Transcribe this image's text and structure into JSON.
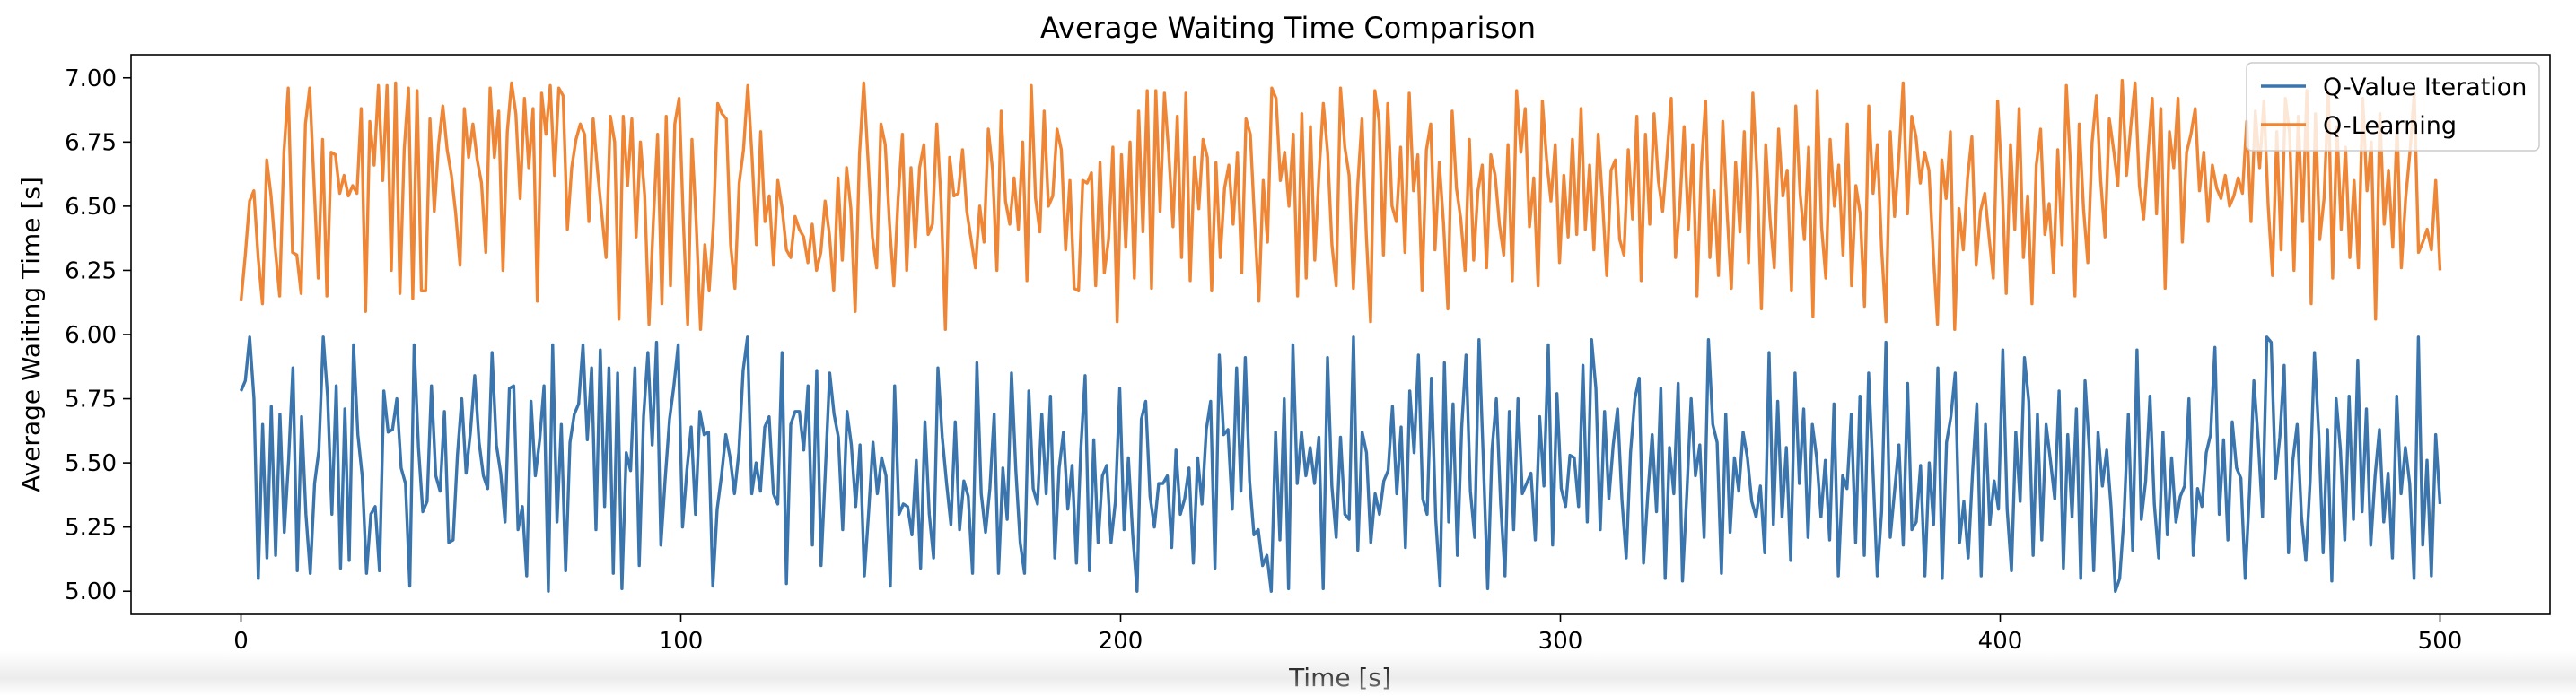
{
  "chart_data": {
    "type": "line",
    "title": "Average Waiting Time Comparison",
    "xlabel": "Time [s]",
    "ylabel": "Average Waiting Time [s]",
    "xlim": [
      -25,
      525
    ],
    "ylim": [
      4.91,
      7.09
    ],
    "xticks": [
      0,
      100,
      200,
      300,
      400,
      500
    ],
    "yticks": [
      5.0,
      5.25,
      5.5,
      5.75,
      6.0,
      6.25,
      6.5,
      6.75,
      7.0
    ],
    "xtick_labels": [
      "0",
      "100",
      "200",
      "300",
      "400",
      "500"
    ],
    "ytick_labels": [
      "5.00",
      "5.25",
      "5.50",
      "5.75",
      "6.00",
      "6.25",
      "6.50",
      "6.75",
      "7.00"
    ],
    "grid": false,
    "legend_position": "top-right",
    "series": [
      {
        "name": "Q-Value Iteration",
        "color": "#3a75ad",
        "range": [
          5.0,
          6.0
        ],
        "x_start": 0,
        "x_end": 500,
        "values": [
          5.78,
          5.82,
          5.99,
          5.75,
          5.05,
          5.65,
          5.13,
          5.72,
          5.14,
          5.69,
          5.23,
          5.51,
          5.87,
          5.08,
          5.68,
          5.3,
          5.07,
          5.42,
          5.55,
          5.99,
          5.76,
          5.3,
          5.8,
          5.09,
          5.71,
          5.12,
          5.96,
          5.61,
          5.45,
          5.07,
          5.3,
          5.33,
          5.08,
          5.78,
          5.62,
          5.63,
          5.75,
          5.48,
          5.42,
          5.02,
          5.96,
          5.56,
          5.31,
          5.35,
          5.8,
          5.45,
          5.39,
          5.7,
          5.19,
          5.2,
          5.53,
          5.75,
          5.46,
          5.62,
          5.84,
          5.58,
          5.45,
          5.4,
          5.93,
          5.57,
          5.46,
          5.27,
          5.79,
          5.8,
          5.24,
          5.33,
          5.06,
          5.74,
          5.45,
          5.59,
          5.8,
          5.0,
          5.96,
          5.27,
          5.65,
          5.08,
          5.58,
          5.69,
          5.73,
          5.96,
          5.59,
          5.87,
          5.24,
          5.94,
          5.33,
          5.87,
          5.07,
          5.85,
          5.01,
          5.54,
          5.47,
          5.87,
          5.1,
          5.68,
          5.93,
          5.57,
          5.97,
          5.18,
          5.44,
          5.67,
          5.8,
          5.96,
          5.25,
          5.47,
          5.64,
          5.3,
          5.7,
          5.61,
          5.62,
          5.02,
          5.32,
          5.45,
          5.61,
          5.52,
          5.38,
          5.54,
          5.86,
          5.99,
          5.38,
          5.5,
          5.39,
          5.64,
          5.68,
          5.38,
          5.34,
          5.93,
          5.03,
          5.65,
          5.7,
          5.7,
          5.55,
          5.8,
          5.18,
          5.86,
          5.1,
          5.47,
          5.85,
          5.69,
          5.6,
          5.24,
          5.7,
          5.57,
          5.33,
          5.57,
          5.06,
          5.31,
          5.58,
          5.38,
          5.52,
          5.45,
          5.02,
          5.8,
          5.3,
          5.34,
          5.33,
          5.22,
          5.51,
          5.09,
          5.66,
          5.3,
          5.13,
          5.87,
          5.6,
          5.42,
          5.26,
          5.66,
          5.24,
          5.43,
          5.37,
          5.07,
          5.89,
          5.38,
          5.23,
          5.4,
          5.69,
          5.07,
          5.48,
          5.28,
          5.85,
          5.47,
          5.19,
          5.07,
          5.78,
          5.4,
          5.34,
          5.69,
          5.38,
          5.76,
          5.13,
          5.48,
          5.62,
          5.32,
          5.49,
          5.11,
          5.55,
          5.84,
          5.08,
          5.59,
          5.19,
          5.45,
          5.49,
          5.19,
          5.35,
          5.79,
          5.24,
          5.52,
          5.22,
          5.0,
          5.67,
          5.74,
          5.37,
          5.25,
          5.42,
          5.42,
          5.45,
          5.17,
          5.55,
          5.3,
          5.36,
          5.48,
          5.11,
          5.52,
          5.34,
          5.63,
          5.74,
          5.09,
          5.92,
          5.61,
          5.63,
          5.32,
          5.87,
          5.39,
          5.91,
          5.43,
          5.22,
          5.24,
          5.1,
          5.14,
          5.0,
          5.62,
          5.2,
          5.75,
          5.01,
          5.96,
          5.42,
          5.62,
          5.45,
          5.56,
          5.42,
          5.6,
          5.01,
          5.91,
          5.41,
          5.21,
          5.6,
          5.3,
          5.28,
          5.99,
          5.16,
          5.62,
          5.54,
          5.19,
          5.38,
          5.3,
          5.43,
          5.47,
          5.72,
          5.38,
          5.64,
          5.17,
          5.78,
          5.54,
          5.92,
          5.36,
          5.3,
          5.83,
          5.28,
          5.02,
          5.89,
          5.27,
          5.73,
          5.14,
          5.64,
          5.92,
          5.39,
          5.21,
          5.98,
          5.51,
          5.01,
          5.55,
          5.75,
          5.34,
          5.06,
          5.7,
          5.24,
          5.75,
          5.38,
          5.42,
          5.46,
          5.2,
          5.68,
          5.41,
          5.96,
          5.18,
          5.77,
          5.4,
          5.33,
          5.53,
          5.52,
          5.33,
          5.88,
          5.27,
          5.98,
          5.79,
          5.24,
          5.7,
          5.36,
          5.57,
          5.71,
          5.36,
          5.13,
          5.54,
          5.75,
          5.83,
          5.11,
          5.38,
          5.61,
          5.31,
          5.79,
          5.05,
          5.56,
          5.38,
          5.81,
          5.04,
          5.38,
          5.75,
          5.45,
          5.57,
          5.21,
          5.98,
          5.65,
          5.58,
          5.07,
          5.69,
          5.23,
          5.52,
          5.39,
          5.62,
          5.52,
          5.35,
          5.29,
          5.41,
          5.15,
          5.93,
          5.26,
          5.74,
          5.29,
          5.56,
          5.12,
          5.85,
          5.42,
          5.71,
          5.21,
          5.65,
          5.52,
          5.29,
          5.51,
          5.2,
          5.73,
          5.06,
          5.45,
          5.4,
          5.69,
          5.19,
          5.76,
          5.14,
          5.85,
          5.47,
          5.06,
          5.31,
          5.97,
          5.21,
          5.39,
          5.57,
          5.18,
          5.81,
          5.24,
          5.27,
          5.49,
          5.06,
          5.5,
          5.26,
          5.87,
          5.05,
          5.58,
          5.68,
          5.85,
          5.19,
          5.35,
          5.13,
          5.46,
          5.73,
          5.06,
          5.65,
          5.26,
          5.43,
          5.32,
          5.94,
          5.32,
          5.08,
          5.62,
          5.35,
          5.91,
          5.74,
          5.14,
          5.69,
          5.2,
          5.65,
          5.51,
          5.36,
          5.78,
          5.09,
          5.61,
          5.29,
          5.71,
          5.05,
          5.82,
          5.55,
          5.08,
          5.62,
          5.41,
          5.55,
          5.33,
          5.0,
          5.05,
          5.29,
          5.69,
          5.16,
          5.94,
          5.28,
          5.43,
          5.76,
          5.34,
          5.13,
          5.62,
          5.22,
          5.52,
          5.27,
          5.37,
          5.41,
          5.75,
          5.14,
          5.4,
          5.33,
          5.54,
          5.61,
          5.95,
          5.3,
          5.59,
          5.2,
          5.66,
          5.48,
          5.44,
          5.05,
          5.39,
          5.82,
          5.59,
          5.29,
          5.99,
          5.97,
          5.44,
          5.6,
          5.88,
          5.15,
          5.51,
          5.65,
          5.29,
          5.12,
          5.43,
          5.93,
          5.61,
          5.15,
          5.63,
          5.04,
          5.75,
          5.55,
          5.2,
          5.76,
          5.28,
          5.9,
          5.31,
          5.71,
          5.18,
          5.45,
          5.63,
          5.27,
          5.46,
          5.13,
          5.76,
          5.38,
          5.56,
          5.42,
          5.05,
          5.99,
          5.18,
          5.51,
          5.06,
          5.61,
          5.34
        ]
      },
      {
        "name": "Q-Learning",
        "color": "#ef8636",
        "range": [
          6.0,
          7.0
        ],
        "x_start": 0,
        "x_end": 500,
        "values": [
          6.13,
          6.31,
          6.52,
          6.56,
          6.3,
          6.12,
          6.68,
          6.54,
          6.33,
          6.15,
          6.71,
          6.96,
          6.32,
          6.31,
          6.16,
          6.82,
          6.96,
          6.59,
          6.22,
          6.76,
          6.15,
          6.71,
          6.7,
          6.55,
          6.62,
          6.54,
          6.58,
          6.55,
          6.88,
          6.09,
          6.83,
          6.66,
          6.97,
          6.6,
          6.97,
          6.25,
          6.98,
          6.16,
          6.72,
          6.96,
          6.14,
          6.95,
          6.17,
          6.17,
          6.84,
          6.48,
          6.74,
          6.89,
          6.72,
          6.62,
          6.47,
          6.27,
          6.88,
          6.69,
          6.82,
          6.68,
          6.59,
          6.32,
          6.96,
          6.69,
          6.87,
          6.25,
          6.79,
          6.98,
          6.86,
          6.53,
          6.92,
          6.65,
          6.88,
          6.13,
          6.94,
          6.78,
          6.97,
          6.62,
          6.96,
          6.93,
          6.41,
          6.65,
          6.76,
          6.82,
          6.78,
          6.44,
          6.84,
          6.64,
          6.47,
          6.3,
          6.85,
          6.75,
          6.06,
          6.85,
          6.58,
          6.84,
          6.38,
          6.75,
          6.54,
          6.04,
          6.44,
          6.78,
          6.12,
          6.85,
          6.19,
          6.82,
          6.92,
          6.44,
          6.04,
          6.76,
          6.43,
          6.02,
          6.35,
          6.17,
          6.43,
          6.9,
          6.86,
          6.84,
          6.35,
          6.18,
          6.59,
          6.72,
          6.97,
          6.69,
          6.35,
          6.79,
          6.44,
          6.54,
          6.27,
          6.6,
          6.49,
          6.33,
          6.3,
          6.46,
          6.41,
          6.38,
          6.28,
          6.43,
          6.25,
          6.32,
          6.52,
          6.39,
          6.17,
          6.61,
          6.29,
          6.65,
          6.49,
          6.09,
          6.7,
          6.98,
          6.68,
          6.38,
          6.26,
          6.82,
          6.74,
          6.43,
          6.19,
          6.53,
          6.78,
          6.25,
          6.65,
          6.34,
          6.65,
          6.74,
          6.39,
          6.43,
          6.82,
          6.52,
          6.02,
          6.69,
          6.54,
          6.55,
          6.72,
          6.48,
          6.37,
          6.26,
          6.5,
          6.36,
          6.8,
          6.64,
          6.25,
          6.87,
          6.52,
          6.43,
          6.61,
          6.41,
          6.75,
          6.21,
          6.97,
          6.53,
          6.4,
          6.87,
          6.5,
          6.54,
          6.8,
          6.72,
          6.33,
          6.6,
          6.18,
          6.17,
          6.6,
          6.59,
          6.63,
          6.19,
          6.67,
          6.24,
          6.37,
          6.73,
          6.05,
          6.7,
          6.34,
          6.75,
          6.22,
          6.87,
          6.4,
          6.95,
          6.18,
          6.95,
          6.48,
          6.94,
          6.71,
          6.42,
          6.85,
          6.3,
          6.94,
          6.21,
          6.69,
          6.49,
          6.76,
          6.69,
          6.17,
          6.67,
          6.3,
          6.57,
          6.66,
          6.43,
          6.71,
          6.24,
          6.84,
          6.78,
          6.44,
          6.13,
          6.6,
          6.36,
          6.96,
          6.92,
          6.6,
          6.71,
          6.5,
          6.78,
          6.15,
          6.86,
          6.22,
          6.81,
          6.29,
          6.63,
          6.9,
          6.71,
          6.35,
          6.19,
          6.96,
          6.73,
          6.62,
          6.18,
          6.58,
          6.84,
          6.39,
          6.05,
          6.95,
          6.83,
          6.31,
          6.9,
          6.5,
          6.44,
          6.73,
          6.32,
          6.94,
          6.56,
          6.7,
          6.17,
          6.72,
          6.82,
          6.33,
          6.67,
          6.43,
          6.1,
          6.87,
          6.57,
          6.45,
          6.25,
          6.76,
          6.29,
          6.56,
          6.66,
          6.26,
          6.7,
          6.62,
          6.43,
          6.31,
          6.74,
          6.21,
          6.95,
          6.71,
          6.88,
          6.42,
          6.61,
          6.19,
          6.91,
          6.68,
          6.52,
          6.74,
          6.28,
          6.62,
          6.38,
          6.76,
          6.39,
          6.88,
          6.41,
          6.66,
          6.33,
          6.78,
          6.52,
          6.23,
          6.64,
          6.68,
          6.37,
          6.31,
          6.72,
          6.45,
          6.85,
          6.21,
          6.78,
          6.43,
          6.86,
          6.6,
          6.48,
          6.69,
          6.92,
          6.3,
          6.5,
          6.81,
          6.41,
          6.74,
          6.15,
          6.65,
          6.91,
          6.3,
          6.56,
          6.23,
          6.83,
          6.48,
          6.18,
          6.67,
          6.4,
          6.79,
          6.28,
          6.94,
          6.62,
          6.1,
          6.74,
          6.45,
          6.26,
          6.8,
          6.54,
          6.64,
          6.17,
          6.89,
          6.55,
          6.37,
          6.73,
          6.07,
          6.95,
          6.42,
          6.22,
          6.76,
          6.5,
          6.66,
          6.31,
          6.82,
          6.19,
          6.58,
          6.47,
          6.11,
          6.89,
          6.55,
          6.74,
          6.33,
          6.05,
          6.79,
          6.46,
          6.69,
          6.98,
          6.47,
          6.85,
          6.77,
          6.59,
          6.71,
          6.64,
          6.32,
          6.04,
          6.68,
          6.53,
          6.79,
          6.02,
          6.49,
          6.33,
          6.61,
          6.77,
          6.27,
          6.48,
          6.55,
          6.38,
          6.22,
          6.91,
          6.6,
          6.16,
          6.74,
          6.41,
          6.88,
          6.3,
          6.54,
          6.12,
          6.66,
          6.8,
          6.39,
          6.51,
          6.24,
          6.72,
          6.35,
          6.97,
          6.65,
          6.15,
          6.82,
          6.49,
          6.28,
          6.75,
          6.93,
          6.6,
          6.38,
          6.84,
          6.72,
          6.58,
          6.99,
          6.62,
          6.81,
          6.98,
          6.58,
          6.45,
          6.7,
          6.92,
          6.47,
          6.88,
          6.18,
          6.79,
          6.65,
          6.92,
          6.36,
          6.71,
          6.78,
          6.88,
          6.56,
          6.71,
          6.44,
          6.66,
          6.57,
          6.53,
          6.62,
          6.5,
          6.54,
          6.61,
          6.55,
          6.83,
          6.44,
          6.87,
          6.65,
          6.91,
          6.5,
          6.23,
          6.79,
          6.33,
          6.92,
          6.78,
          6.25,
          6.85,
          6.44,
          6.95,
          6.12,
          6.86,
          6.37,
          6.53,
          6.95,
          6.22,
          6.81,
          6.41,
          6.73,
          6.3,
          6.6,
          6.26,
          6.92,
          6.56,
          6.75,
          6.06,
          6.86,
          6.43,
          6.64,
          6.34,
          6.82,
          6.26,
          6.53,
          6.71,
          6.94,
          6.32,
          6.36,
          6.41,
          6.33,
          6.6,
          6.25
        ]
      }
    ]
  }
}
